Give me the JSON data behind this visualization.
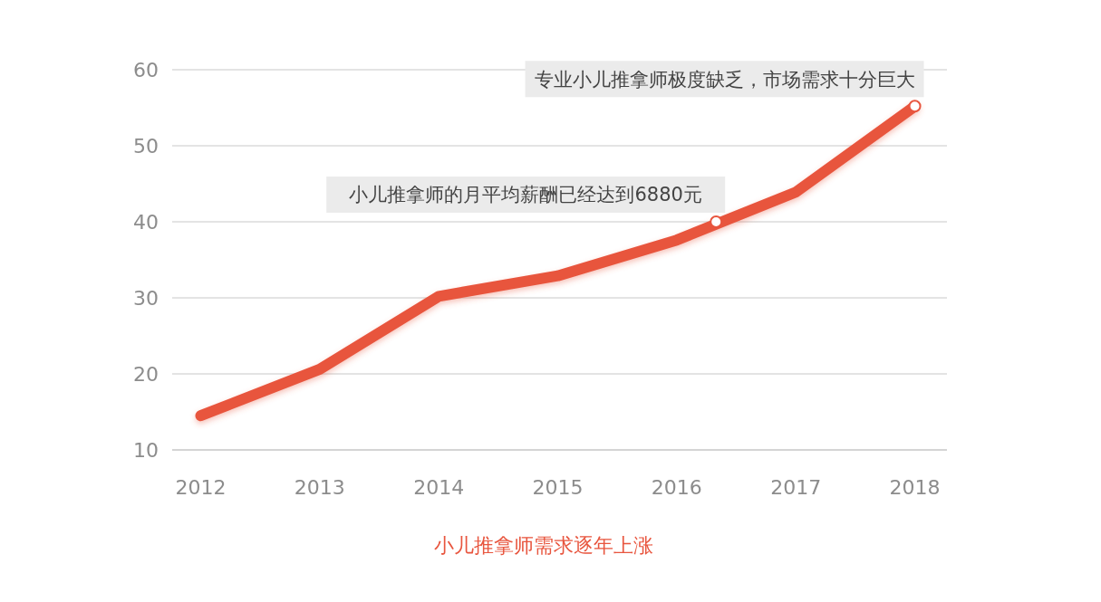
{
  "chart_data": {
    "type": "line",
    "title": "小儿推拿师需求逐年上涨",
    "x": [
      2012,
      2013,
      2014,
      2015,
      2016,
      2017,
      2018
    ],
    "series": [
      {
        "color": "#e8553e",
        "values": [
          14.5,
          20.6,
          30.2,
          32.9,
          37.6,
          43.9,
          55.2
        ]
      }
    ],
    "xlim": [
      2011.76,
      2018.27
    ],
    "xticks": [
      2012,
      2013,
      2014,
      2015,
      2016,
      2017,
      2018
    ],
    "ylim": [
      10,
      60
    ],
    "yticks": [
      10,
      20,
      30,
      40,
      50,
      60
    ],
    "grid": "y",
    "line_style": "solid",
    "annotations": [
      {
        "text": "小儿推拿师的月平均薪酬已经达到6880元",
        "x": 2016.33,
        "y": 40
      },
      {
        "text": "专业小儿推拿师极度缺乏，市场需求十分巨大",
        "x": 2018,
        "y": 55.2
      }
    ]
  }
}
